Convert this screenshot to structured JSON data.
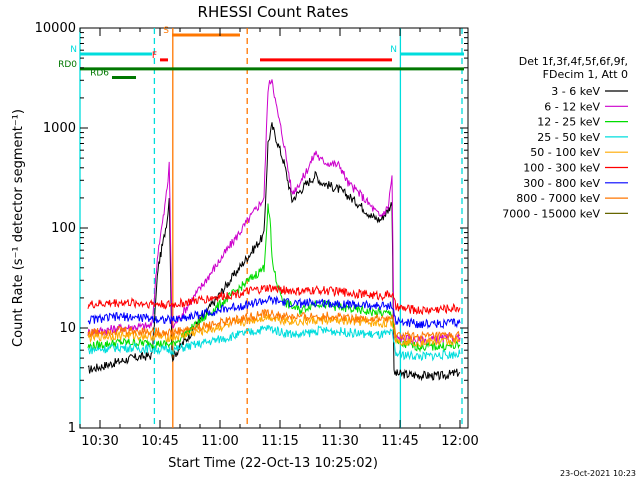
{
  "chart_data": {
    "type": "line",
    "title": "RHESSI Count Rates",
    "xlabel": "Start Time (22-Oct-13 10:25:02)",
    "ylabel": "Count Rate (s⁻¹ detector segment⁻¹)",
    "x_unit": "minutes",
    "xlim": [
      "10:25",
      "12:02"
    ],
    "ylim": [
      1,
      10000
    ],
    "yscale": "log",
    "x_ticks": [
      "10:30",
      "10:45",
      "11:00",
      "11:15",
      "11:30",
      "11:45",
      "12:00"
    ],
    "y_ticks": [
      "1",
      "10",
      "100",
      "1000",
      "10000"
    ],
    "grid": false,
    "legend_position": "right",
    "legend_header": [
      "Det 1f,3f,4f,5f,6f,9f,",
      "FDecim 1, Att 0"
    ],
    "footer_date": "23-Oct-2021 10:23",
    "series": [
      {
        "name": "3 - 6 keV",
        "color": "#000000",
        "data": [
          [
            "10:27",
            3.8
          ],
          [
            "10:32",
            4.3
          ],
          [
            "10:38",
            5.0
          ],
          [
            "10:43",
            5.3
          ],
          [
            "10:44.5",
            40
          ],
          [
            "10:46",
            80
          ],
          [
            "10:47",
            140
          ],
          [
            "10:47.3",
            220
          ],
          [
            "10:48",
            5.0
          ],
          [
            "11:11",
            85
          ],
          [
            "11:12",
            700
          ],
          [
            "11:13",
            1050
          ],
          [
            "11:14",
            800
          ],
          [
            "11:16",
            450
          ],
          [
            "11:18",
            190
          ],
          [
            "11:21",
            260
          ],
          [
            "11:24",
            340
          ],
          [
            "11:25",
            290
          ],
          [
            "11:27",
            270
          ],
          [
            "11:30",
            240
          ],
          [
            "11:32",
            210
          ],
          [
            "11:35",
            170
          ],
          [
            "11:38",
            130
          ],
          [
            "11:40",
            120
          ],
          [
            "11:42",
            150
          ],
          [
            "11:43",
            180
          ],
          [
            "11:43.5",
            3.5
          ],
          [
            "11:48",
            3.4
          ],
          [
            "11:55",
            3.3
          ],
          [
            "12:00",
            3.6
          ]
        ]
      },
      {
        "name": "6 - 12 keV",
        "color": "#cc00cc",
        "data": [
          [
            "10:27",
            9
          ],
          [
            "10:35",
            10
          ],
          [
            "10:43",
            10.5
          ],
          [
            "10:44.5",
            60
          ],
          [
            "10:46",
            140
          ],
          [
            "10:47",
            300
          ],
          [
            "10:47.3",
            480
          ],
          [
            "10:48",
            10
          ],
          [
            "11:11",
            200
          ],
          [
            "11:12",
            2500
          ],
          [
            "11:13",
            3200
          ],
          [
            "11:14",
            1700
          ],
          [
            "11:16",
            700
          ],
          [
            "11:18",
            220
          ],
          [
            "11:21",
            330
          ],
          [
            "11:24",
            580
          ],
          [
            "11:25",
            480
          ],
          [
            "11:27",
            450
          ],
          [
            "11:30",
            420
          ],
          [
            "11:32",
            280
          ],
          [
            "11:35",
            220
          ],
          [
            "11:38",
            160
          ],
          [
            "11:40",
            130
          ],
          [
            "11:42",
            160
          ],
          [
            "11:43",
            330
          ],
          [
            "11:43.5",
            8
          ],
          [
            "11:50",
            7.5
          ],
          [
            "12:00",
            8
          ]
        ]
      },
      {
        "name": "12 - 25 keV",
        "color": "#00dd00",
        "data": [
          [
            "10:27",
            6.5
          ],
          [
            "10:35",
            7.2
          ],
          [
            "10:43",
            7.0
          ],
          [
            "10:48",
            6.8
          ],
          [
            "11:11",
            40
          ],
          [
            "11:12",
            160
          ],
          [
            "11:12.5",
            120
          ],
          [
            "11:13",
            50
          ],
          [
            "11:14",
            30
          ],
          [
            "11:16",
            18
          ],
          [
            "11:20",
            15
          ],
          [
            "11:24",
            18
          ],
          [
            "11:30",
            16
          ],
          [
            "11:35",
            15
          ],
          [
            "11:40",
            14
          ],
          [
            "11:43",
            14
          ],
          [
            "11:44",
            7
          ],
          [
            "11:50",
            6.5
          ],
          [
            "12:00",
            6.6
          ]
        ]
      },
      {
        "name": "25 - 50 keV",
        "color": "#00dddd",
        "data": [
          [
            "10:27",
            6.0
          ],
          [
            "10:35",
            6.4
          ],
          [
            "10:43",
            6.2
          ],
          [
            "10:48",
            6.0
          ],
          [
            "11:12",
            10
          ],
          [
            "11:16",
            9
          ],
          [
            "11:20",
            8.5
          ],
          [
            "11:25",
            9.5
          ],
          [
            "11:30",
            9.2
          ],
          [
            "11:35",
            8.8
          ],
          [
            "11:40",
            8.5
          ],
          [
            "11:43",
            8.8
          ],
          [
            "11:44",
            5.5
          ],
          [
            "11:50",
            5.2
          ],
          [
            "12:00",
            5.5
          ]
        ]
      },
      {
        "name": "50 - 100 keV",
        "color": "#ffaa00",
        "data": [
          [
            "10:27",
            8.0
          ],
          [
            "10:35",
            8.5
          ],
          [
            "10:43",
            8.3
          ],
          [
            "10:48",
            8.0
          ],
          [
            "11:12",
            13
          ],
          [
            "11:16",
            12
          ],
          [
            "11:20",
            11.5
          ],
          [
            "11:25",
            12
          ],
          [
            "11:30",
            11.8
          ],
          [
            "11:35",
            11.5
          ],
          [
            "11:40",
            11.0
          ],
          [
            "11:43",
            11.5
          ],
          [
            "11:44",
            7.5
          ],
          [
            "11:50",
            7.2
          ],
          [
            "12:00",
            7.4
          ]
        ]
      },
      {
        "name": "100 - 300 keV",
        "color": "#ff0000",
        "data": [
          [
            "10:27",
            17
          ],
          [
            "10:35",
            18
          ],
          [
            "10:43",
            17.5
          ],
          [
            "10:48",
            17
          ],
          [
            "11:12",
            25
          ],
          [
            "11:16",
            24
          ],
          [
            "11:20",
            23
          ],
          [
            "11:25",
            24
          ],
          [
            "11:30",
            23
          ],
          [
            "11:35",
            22
          ],
          [
            "11:40",
            21
          ],
          [
            "11:43",
            22
          ],
          [
            "11:44",
            16
          ],
          [
            "11:50",
            15
          ],
          [
            "12:00",
            16
          ]
        ]
      },
      {
        "name": "300 - 800 keV",
        "color": "#0000ff",
        "data": [
          [
            "10:27",
            12
          ],
          [
            "10:35",
            13
          ],
          [
            "10:43",
            12.5
          ],
          [
            "10:48",
            12
          ],
          [
            "11:12",
            19
          ],
          [
            "11:16",
            18
          ],
          [
            "11:20",
            17.5
          ],
          [
            "11:25",
            18
          ],
          [
            "11:30",
            17.5
          ],
          [
            "11:35",
            17
          ],
          [
            "11:40",
            16.5
          ],
          [
            "11:43",
            17
          ],
          [
            "11:44",
            11.5
          ],
          [
            "11:50",
            11
          ],
          [
            "12:00",
            11.2
          ]
        ]
      },
      {
        "name": "800 - 7000 keV",
        "color": "#ff7700",
        "data": [
          [
            "10:27",
            9.0
          ],
          [
            "10:35",
            9.5
          ],
          [
            "10:43",
            9.2
          ],
          [
            "10:48",
            9.0
          ],
          [
            "11:12",
            14
          ],
          [
            "11:16",
            13
          ],
          [
            "11:20",
            12.8
          ],
          [
            "11:25",
            13.2
          ],
          [
            "11:30",
            13
          ],
          [
            "11:35",
            12.5
          ],
          [
            "11:40",
            12.2
          ],
          [
            "11:43",
            12.5
          ],
          [
            "11:44",
            8.5
          ],
          [
            "11:50",
            8.2
          ],
          [
            "12:00",
            8.4
          ]
        ]
      },
      {
        "name": "7000 - 15000 keV",
        "color": "#666600",
        "data": []
      }
    ],
    "annotations": [
      {
        "label": "N",
        "color": "#00dddd",
        "x_start": "10:25",
        "x_end": "10:43",
        "y": 5500
      },
      {
        "label": "N",
        "color": "#00dddd",
        "x_start": "11:45",
        "x_end": "12:01",
        "y": 5500
      },
      {
        "label": "S",
        "color": "#ff7700",
        "x_start": "10:48",
        "x_end": "11:05",
        "y": 8500
      },
      {
        "label": "F",
        "color": "#ff0000",
        "x_start": "10:45",
        "x_end": "10:47",
        "y": 4800
      },
      {
        "label": "",
        "color": "#ff0000",
        "x_start": "11:10",
        "x_end": "11:43",
        "y": 4800
      },
      {
        "label": "RD0",
        "color": "#007700",
        "x_start": "10:25",
        "x_end": "12:01",
        "y": 3900
      },
      {
        "label": "RD6",
        "color": "#007700",
        "x_start": "10:33",
        "x_end": "10:39",
        "y": 3200
      }
    ],
    "vertical_lines": [
      {
        "x": "10:25",
        "color": "#00dddd",
        "style": "solid"
      },
      {
        "x": "10:43.6",
        "color": "#00dddd",
        "style": "dashed"
      },
      {
        "x": "10:48.2",
        "color": "#ff7700",
        "style": "solid"
      },
      {
        "x": "11:06.8",
        "color": "#ff7700",
        "style": "dashed"
      },
      {
        "x": "11:45.1",
        "color": "#00dddd",
        "style": "solid"
      },
      {
        "x": "12:00.5",
        "color": "#00dddd",
        "style": "dashed"
      }
    ]
  }
}
